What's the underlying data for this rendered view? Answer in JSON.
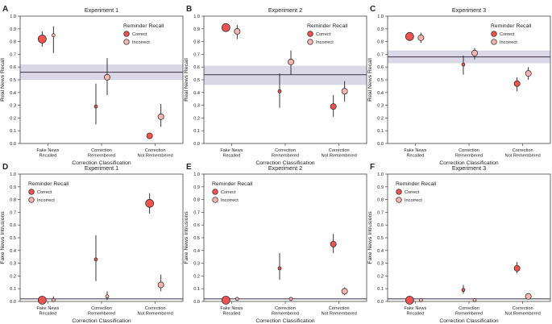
{
  "colors": {
    "correct": "#ef5350",
    "incorrect": "#f7b3ae",
    "band": "#dad7e6",
    "axis": "#444444",
    "refline": "#4d4458"
  },
  "chart_data": [
    {
      "type": "scatter",
      "panel_letter": "A",
      "title": "Experiment 1",
      "xlabel": "Correction Classification",
      "ylabel": "Real News Recall",
      "categories": [
        "Fake News\nRecalled",
        "Correction\nRemembered",
        "Correction\nNot Remembered"
      ],
      "ylim": [
        0.0,
        1.0
      ],
      "yticks": [
        "0.0",
        "0.1",
        "0.2",
        "0.3",
        "0.4",
        "0.5",
        "0.6",
        "0.7",
        "0.8",
        "0.9",
        "1.0"
      ],
      "legend": {
        "title": "Reminder Recall",
        "entries": [
          "Correct",
          "Incorrect"
        ],
        "position": "top-right"
      },
      "reference": {
        "value": 0.56,
        "band": [
          0.5,
          0.62
        ]
      },
      "series": [
        {
          "name": "Correct",
          "points": [
            {
              "category": 0,
              "y": 0.82,
              "lo": 0.76,
              "hi": 0.88,
              "weight": 3
            },
            {
              "category": 1,
              "y": 0.29,
              "lo": 0.15,
              "hi": 0.47,
              "weight": 1
            },
            {
              "category": 2,
              "y": 0.06,
              "lo": 0.04,
              "hi": 0.08,
              "weight": 2
            }
          ]
        },
        {
          "name": "Incorrect",
          "points": [
            {
              "category": 0,
              "y": 0.85,
              "lo": 0.71,
              "hi": 0.92,
              "weight": 1
            },
            {
              "category": 1,
              "y": 0.52,
              "lo": 0.38,
              "hi": 0.67,
              "weight": 2
            },
            {
              "category": 2,
              "y": 0.21,
              "lo": 0.13,
              "hi": 0.31,
              "weight": 2
            }
          ]
        }
      ]
    },
    {
      "type": "scatter",
      "panel_letter": "B",
      "title": "Experiment 2",
      "xlabel": "Correction Classification",
      "ylabel": "Real News Recall",
      "categories": [
        "Fake News\nRecalled",
        "Correction\nRemembered",
        "Correction\nNot Remembered"
      ],
      "ylim": [
        0.0,
        1.0
      ],
      "yticks": [
        "0.0",
        "0.1",
        "0.2",
        "0.3",
        "0.4",
        "0.5",
        "0.6",
        "0.7",
        "0.8",
        "0.9",
        "1.0"
      ],
      "legend": {
        "title": "Reminder Recall",
        "entries": [
          "Correct",
          "Incorrect"
        ],
        "position": "top-right"
      },
      "reference": {
        "value": 0.54,
        "band": [
          0.46,
          0.61
        ]
      },
      "series": [
        {
          "name": "Correct",
          "points": [
            {
              "category": 0,
              "y": 0.91,
              "lo": 0.88,
              "hi": 0.94,
              "weight": 3
            },
            {
              "category": 1,
              "y": 0.41,
              "lo": 0.28,
              "hi": 0.55,
              "weight": 1
            },
            {
              "category": 2,
              "y": 0.29,
              "lo": 0.21,
              "hi": 0.38,
              "weight": 2
            }
          ]
        },
        {
          "name": "Incorrect",
          "points": [
            {
              "category": 0,
              "y": 0.88,
              "lo": 0.82,
              "hi": 0.93,
              "weight": 2
            },
            {
              "category": 1,
              "y": 0.64,
              "lo": 0.54,
              "hi": 0.73,
              "weight": 2
            },
            {
              "category": 2,
              "y": 0.41,
              "lo": 0.33,
              "hi": 0.49,
              "weight": 2
            }
          ]
        }
      ]
    },
    {
      "type": "scatter",
      "panel_letter": "C",
      "title": "Experiment 3",
      "xlabel": "Correction Classification",
      "ylabel": "Real News Recall",
      "categories": [
        "Fake News\nRecalled",
        "Correction\nRemembered",
        "Correction\nNot Remembered"
      ],
      "ylim": [
        0.0,
        1.0
      ],
      "yticks": [
        "0.0",
        "0.1",
        "0.2",
        "0.3",
        "0.4",
        "0.5",
        "0.6",
        "0.7",
        "0.8",
        "0.9",
        "1.0"
      ],
      "legend": {
        "title": "Reminder Recall",
        "entries": [
          "Correct",
          "Incorrect"
        ],
        "position": "top-right"
      },
      "reference": {
        "value": 0.68,
        "band": [
          0.63,
          0.73
        ]
      },
      "series": [
        {
          "name": "Correct",
          "points": [
            {
              "category": 0,
              "y": 0.84,
              "lo": 0.82,
              "hi": 0.86,
              "weight": 3
            },
            {
              "category": 1,
              "y": 0.62,
              "lo": 0.54,
              "hi": 0.69,
              "weight": 1
            },
            {
              "category": 2,
              "y": 0.47,
              "lo": 0.41,
              "hi": 0.52,
              "weight": 2
            }
          ]
        },
        {
          "name": "Incorrect",
          "points": [
            {
              "category": 0,
              "y": 0.83,
              "lo": 0.79,
              "hi": 0.87,
              "weight": 2
            },
            {
              "category": 1,
              "y": 0.71,
              "lo": 0.66,
              "hi": 0.75,
              "weight": 2
            },
            {
              "category": 2,
              "y": 0.55,
              "lo": 0.5,
              "hi": 0.6,
              "weight": 2
            }
          ]
        }
      ]
    },
    {
      "type": "scatter",
      "panel_letter": "D",
      "title": "Experiment 1",
      "xlabel": "Correction Classification",
      "ylabel": "Fake News Intrusions",
      "categories": [
        "Fake News\nRecalled",
        "Correction\nRemembered",
        "Correction\nNot Remembered"
      ],
      "ylim": [
        0.0,
        1.0
      ],
      "yticks": [
        "0.0",
        "0.1",
        "0.2",
        "0.3",
        "0.4",
        "0.5",
        "0.6",
        "0.7",
        "0.8",
        "0.9",
        "1.0"
      ],
      "legend": {
        "title": "Reminder Recall",
        "entries": [
          "Correct",
          "Incorrect"
        ],
        "position": "top-left"
      },
      "reference": {
        "value": 0.02,
        "band": null
      },
      "series": [
        {
          "name": "Correct",
          "points": [
            {
              "category": 0,
              "y": 0.01,
              "lo": 0.005,
              "hi": 0.015,
              "weight": 3
            },
            {
              "category": 1,
              "y": 0.33,
              "lo": 0.16,
              "hi": 0.52,
              "weight": 1
            },
            {
              "category": 2,
              "y": 0.77,
              "lo": 0.69,
              "hi": 0.85,
              "weight": 3
            }
          ]
        },
        {
          "name": "Incorrect",
          "points": [
            {
              "category": 0,
              "y": 0.01,
              "lo": 0.0,
              "hi": 0.04,
              "weight": 1
            },
            {
              "category": 1,
              "y": 0.04,
              "lo": 0.01,
              "hi": 0.08,
              "weight": 1
            },
            {
              "category": 2,
              "y": 0.13,
              "lo": 0.08,
              "hi": 0.21,
              "weight": 2
            }
          ]
        }
      ]
    },
    {
      "type": "scatter",
      "panel_letter": "E",
      "title": "Experiment 2",
      "xlabel": "Correction Classification",
      "ylabel": "Fake News Intrusions",
      "categories": [
        "Fake News\nRecalled",
        "Correction\nRemembered",
        "Correction\nNot Remembered"
      ],
      "ylim": [
        0.0,
        1.0
      ],
      "yticks": [
        "0.0",
        "0.1",
        "0.2",
        "0.3",
        "0.4",
        "0.5",
        "0.6",
        "0.7",
        "0.8",
        "0.9",
        "1.0"
      ],
      "legend": {
        "title": "Reminder Recall",
        "entries": [
          "Correct",
          "Incorrect"
        ],
        "position": "top-left"
      },
      "reference": {
        "value": 0.02,
        "band": null
      },
      "series": [
        {
          "name": "Correct",
          "points": [
            {
              "category": 0,
              "y": 0.01,
              "lo": 0.0,
              "hi": 0.02,
              "weight": 3
            },
            {
              "category": 1,
              "y": 0.26,
              "lo": 0.17,
              "hi": 0.38,
              "weight": 1
            },
            {
              "category": 2,
              "y": 0.45,
              "lo": 0.38,
              "hi": 0.53,
              "weight": 2
            }
          ]
        },
        {
          "name": "Incorrect",
          "points": [
            {
              "category": 0,
              "y": 0.02,
              "lo": 0.01,
              "hi": 0.03,
              "weight": 1
            },
            {
              "category": 1,
              "y": 0.02,
              "lo": 0.01,
              "hi": 0.03,
              "weight": 1
            },
            {
              "category": 2,
              "y": 0.08,
              "lo": 0.05,
              "hi": 0.11,
              "weight": 2
            }
          ]
        }
      ]
    },
    {
      "type": "scatter",
      "panel_letter": "F",
      "title": "Experiment 3",
      "xlabel": "Correction Classification",
      "ylabel": "Fake News Intrusions",
      "categories": [
        "Fake News\nRecalled",
        "Correction\nRemembered",
        "Correction\nNot Remembered"
      ],
      "ylim": [
        0.0,
        1.0
      ],
      "yticks": [
        "0.0",
        "0.1",
        "0.2",
        "0.3",
        "0.4",
        "0.5",
        "0.6",
        "0.7",
        "0.8",
        "0.9",
        "1.0"
      ],
      "legend": {
        "title": "Reminder Recall",
        "entries": [
          "Correct",
          "Incorrect"
        ],
        "position": "top-left"
      },
      "reference": {
        "value": 0.02,
        "band": null
      },
      "series": [
        {
          "name": "Correct",
          "points": [
            {
              "category": 0,
              "y": 0.01,
              "lo": 0.005,
              "hi": 0.015,
              "weight": 3
            },
            {
              "category": 1,
              "y": 0.09,
              "lo": 0.06,
              "hi": 0.13,
              "weight": 1
            },
            {
              "category": 2,
              "y": 0.26,
              "lo": 0.22,
              "hi": 0.31,
              "weight": 2
            }
          ]
        },
        {
          "name": "Incorrect",
          "points": [
            {
              "category": 0,
              "y": 0.01,
              "lo": 0.005,
              "hi": 0.015,
              "weight": 1
            },
            {
              "category": 1,
              "y": 0.01,
              "lo": 0.005,
              "hi": 0.015,
              "weight": 1
            },
            {
              "category": 2,
              "y": 0.04,
              "lo": 0.03,
              "hi": 0.05,
              "weight": 2
            }
          ]
        }
      ]
    }
  ]
}
